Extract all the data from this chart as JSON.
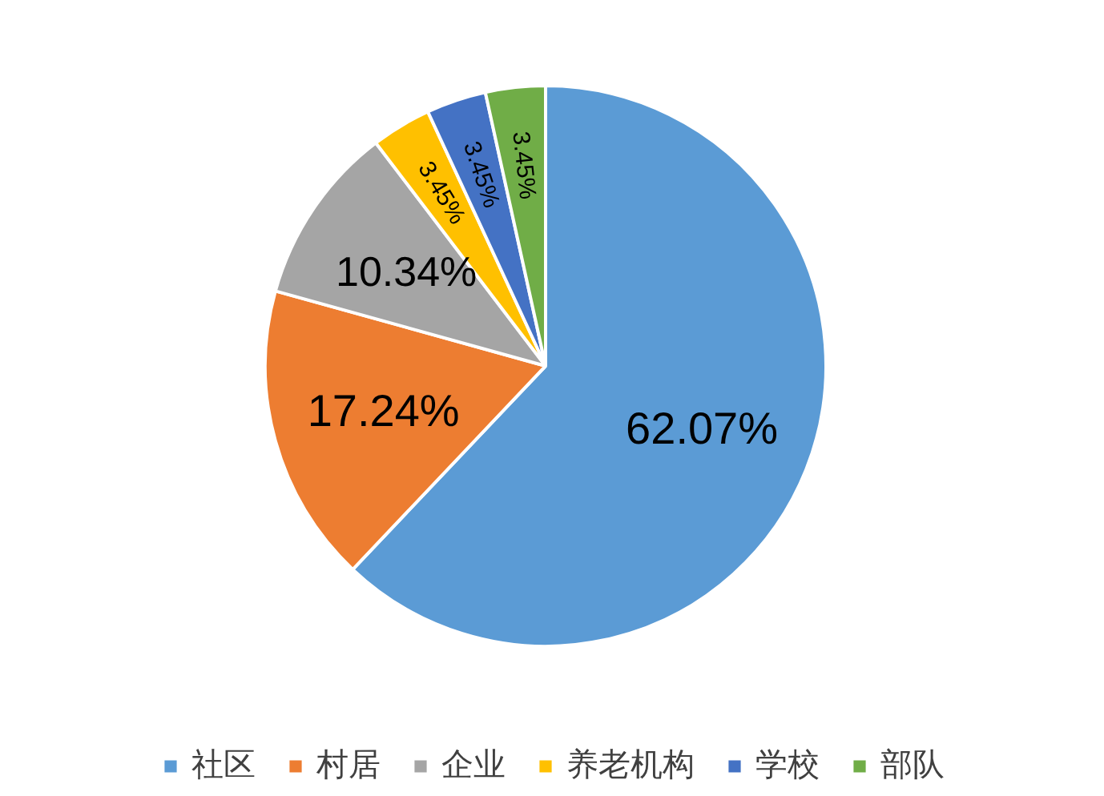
{
  "chart_data": {
    "type": "pie",
    "categories": [
      "社区",
      "村居",
      "企业",
      "养老机构",
      "学校",
      "部队"
    ],
    "values": [
      62.07,
      17.24,
      10.34,
      3.45,
      3.45,
      3.45
    ],
    "colors": [
      "#5b9bd5",
      "#ed7d31",
      "#a5a5a5",
      "#ffc000",
      "#4472c4",
      "#70ad47"
    ],
    "value_labels": [
      "62.07%",
      "17.24%",
      "10.34%",
      "3.45%",
      "3.45%",
      "3.45%"
    ],
    "legend": "bottom"
  }
}
